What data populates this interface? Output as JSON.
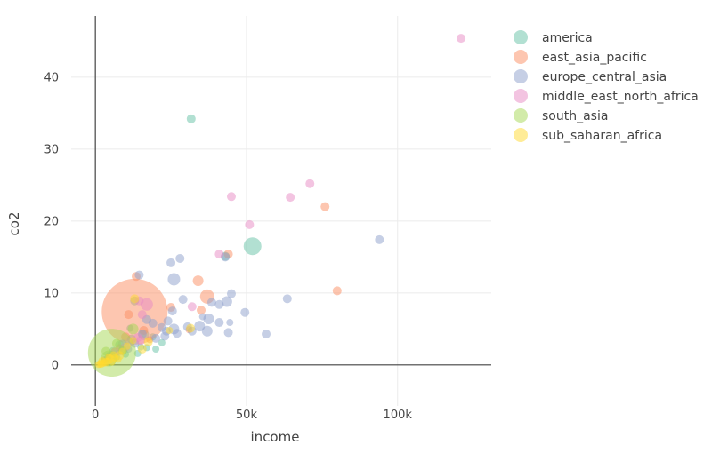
{
  "chart_data": {
    "type": "scatter",
    "title": "",
    "xlabel": "income",
    "ylabel": "co2",
    "xlim": [
      -8000,
      131000
    ],
    "ylim": [
      -5.7,
      48.5
    ],
    "x_ticks": [
      0,
      50000,
      100000
    ],
    "x_tick_labels": [
      "0",
      "50k",
      "100k"
    ],
    "y_ticks": [
      0,
      10,
      20,
      30,
      40
    ],
    "y_tick_labels": [
      "0",
      "10",
      "20",
      "30",
      "40"
    ],
    "grid": true,
    "legend_position": "top-right",
    "series": [
      {
        "name": "america",
        "color": "#66c2a5",
        "points": [
          {
            "x": 31700,
            "y": 34.2,
            "s": 5
          },
          {
            "x": 52000,
            "y": 16.5,
            "s": 10
          },
          {
            "x": 43000,
            "y": 15.1,
            "s": 5
          },
          {
            "x": 13000,
            "y": 8.9,
            "s": 5
          },
          {
            "x": 16000,
            "y": 4.2,
            "s": 6
          },
          {
            "x": 12000,
            "y": 3.6,
            "s": 5
          },
          {
            "x": 8000,
            "y": 2.8,
            "s": 5
          },
          {
            "x": 20000,
            "y": 2.2,
            "s": 4
          },
          {
            "x": 17000,
            "y": 2.4,
            "s": 4
          },
          {
            "x": 6000,
            "y": 1.9,
            "s": 5
          },
          {
            "x": 10000,
            "y": 1.5,
            "s": 4
          },
          {
            "x": 14000,
            "y": 1.6,
            "s": 4
          },
          {
            "x": 4000,
            "y": 0.9,
            "s": 4
          },
          {
            "x": 22000,
            "y": 3.1,
            "s": 4
          },
          {
            "x": 9000,
            "y": 2.0,
            "s": 5
          },
          {
            "x": 11500,
            "y": 5.1,
            "s": 4
          },
          {
            "x": 19000,
            "y": 3.9,
            "s": 4
          },
          {
            "x": 7000,
            "y": 1.1,
            "s": 4
          },
          {
            "x": 15000,
            "y": 2.5,
            "s": 4
          }
        ]
      },
      {
        "name": "east_asia_pacific",
        "color": "#fc8d62",
        "points": [
          {
            "x": 13000,
            "y": 7.4,
            "s": 37
          },
          {
            "x": 37000,
            "y": 9.5,
            "s": 8
          },
          {
            "x": 80000,
            "y": 10.3,
            "s": 5
          },
          {
            "x": 76000,
            "y": 22.0,
            "s": 5
          },
          {
            "x": 44000,
            "y": 15.4,
            "s": 5
          },
          {
            "x": 34000,
            "y": 11.7,
            "s": 6
          },
          {
            "x": 35000,
            "y": 7.6,
            "s": 5
          },
          {
            "x": 25000,
            "y": 8.0,
            "s": 5
          },
          {
            "x": 13500,
            "y": 12.3,
            "s": 5
          },
          {
            "x": 11000,
            "y": 7.0,
            "s": 5
          },
          {
            "x": 10000,
            "y": 3.9,
            "s": 5
          },
          {
            "x": 16000,
            "y": 4.8,
            "s": 5
          },
          {
            "x": 6500,
            "y": 1.8,
            "s": 5
          },
          {
            "x": 4500,
            "y": 1.3,
            "s": 4
          },
          {
            "x": 3000,
            "y": 0.7,
            "s": 4
          },
          {
            "x": 8000,
            "y": 2.4,
            "s": 4
          },
          {
            "x": 18000,
            "y": 3.5,
            "s": 4
          },
          {
            "x": 31000,
            "y": 4.9,
            "s": 4
          }
        ]
      },
      {
        "name": "europe_central_asia",
        "color": "#8da0cb",
        "points": [
          {
            "x": 94000,
            "y": 17.4,
            "s": 5
          },
          {
            "x": 25000,
            "y": 14.2,
            "s": 5
          },
          {
            "x": 28000,
            "y": 14.8,
            "s": 5
          },
          {
            "x": 26000,
            "y": 11.9,
            "s": 7
          },
          {
            "x": 43000,
            "y": 15.0,
            "s": 5
          },
          {
            "x": 14500,
            "y": 12.5,
            "s": 5
          },
          {
            "x": 45000,
            "y": 9.9,
            "s": 5
          },
          {
            "x": 43500,
            "y": 8.8,
            "s": 6
          },
          {
            "x": 41000,
            "y": 8.4,
            "s": 5
          },
          {
            "x": 38500,
            "y": 8.7,
            "s": 5
          },
          {
            "x": 63500,
            "y": 9.2,
            "s": 5
          },
          {
            "x": 49500,
            "y": 7.3,
            "s": 5
          },
          {
            "x": 37500,
            "y": 6.4,
            "s": 6
          },
          {
            "x": 29000,
            "y": 9.1,
            "s": 5
          },
          {
            "x": 25500,
            "y": 7.5,
            "s": 5
          },
          {
            "x": 41000,
            "y": 5.9,
            "s": 5
          },
          {
            "x": 44500,
            "y": 5.9,
            "s": 4
          },
          {
            "x": 34500,
            "y": 5.4,
            "s": 6
          },
          {
            "x": 30500,
            "y": 5.3,
            "s": 5
          },
          {
            "x": 26000,
            "y": 5.0,
            "s": 6
          },
          {
            "x": 23500,
            "y": 4.7,
            "s": 5
          },
          {
            "x": 32000,
            "y": 4.7,
            "s": 5
          },
          {
            "x": 37000,
            "y": 4.7,
            "s": 6
          },
          {
            "x": 44000,
            "y": 4.5,
            "s": 5
          },
          {
            "x": 56500,
            "y": 4.3,
            "s": 5
          },
          {
            "x": 23000,
            "y": 4.0,
            "s": 5
          },
          {
            "x": 20000,
            "y": 3.7,
            "s": 5
          },
          {
            "x": 27000,
            "y": 4.4,
            "s": 5
          },
          {
            "x": 19000,
            "y": 5.8,
            "s": 5
          },
          {
            "x": 17000,
            "y": 6.3,
            "s": 5
          },
          {
            "x": 22000,
            "y": 5.2,
            "s": 5
          },
          {
            "x": 15500,
            "y": 4.3,
            "s": 5
          },
          {
            "x": 13000,
            "y": 3.0,
            "s": 5
          },
          {
            "x": 11000,
            "y": 2.2,
            "s": 4
          },
          {
            "x": 9000,
            "y": 2.9,
            "s": 5
          },
          {
            "x": 24000,
            "y": 6.1,
            "s": 5
          },
          {
            "x": 35500,
            "y": 6.7,
            "s": 4
          }
        ]
      },
      {
        "name": "middle_east_north_africa",
        "color": "#e78ac3",
        "points": [
          {
            "x": 121000,
            "y": 45.4,
            "s": 5
          },
          {
            "x": 71000,
            "y": 25.2,
            "s": 5
          },
          {
            "x": 64500,
            "y": 23.3,
            "s": 5
          },
          {
            "x": 45000,
            "y": 23.4,
            "s": 5
          },
          {
            "x": 51000,
            "y": 19.5,
            "s": 5
          },
          {
            "x": 41000,
            "y": 15.4,
            "s": 5
          },
          {
            "x": 32000,
            "y": 8.1,
            "s": 5
          },
          {
            "x": 17000,
            "y": 8.4,
            "s": 7
          },
          {
            "x": 14500,
            "y": 8.9,
            "s": 5
          },
          {
            "x": 15500,
            "y": 7.0,
            "s": 5
          },
          {
            "x": 14000,
            "y": 3.8,
            "s": 5
          },
          {
            "x": 11500,
            "y": 3.2,
            "s": 5
          },
          {
            "x": 10000,
            "y": 2.5,
            "s": 5
          },
          {
            "x": 8000,
            "y": 1.8,
            "s": 4
          },
          {
            "x": 15000,
            "y": 3.4,
            "s": 5
          }
        ]
      },
      {
        "name": "south_asia",
        "color": "#a6d854",
        "points": [
          {
            "x": 5500,
            "y": 1.7,
            "s": 27
          },
          {
            "x": 12500,
            "y": 5.0,
            "s": 6
          },
          {
            "x": 7000,
            "y": 3.0,
            "s": 5
          },
          {
            "x": 4500,
            "y": 0.9,
            "s": 9
          },
          {
            "x": 3500,
            "y": 1.9,
            "s": 5
          },
          {
            "x": 9000,
            "y": 2.0,
            "s": 5
          }
        ]
      },
      {
        "name": "sub_saharan_africa",
        "color": "#ffd92f",
        "points": [
          {
            "x": 13000,
            "y": 9.2,
            "s": 5
          },
          {
            "x": 17500,
            "y": 3.2,
            "s": 5
          },
          {
            "x": 15500,
            "y": 2.2,
            "s": 5
          },
          {
            "x": 31500,
            "y": 5.1,
            "s": 5
          },
          {
            "x": 24500,
            "y": 4.8,
            "s": 4
          },
          {
            "x": 12500,
            "y": 3.4,
            "s": 4
          },
          {
            "x": 8000,
            "y": 1.3,
            "s": 5
          },
          {
            "x": 6500,
            "y": 1.0,
            "s": 4
          },
          {
            "x": 5000,
            "y": 0.8,
            "s": 5
          },
          {
            "x": 4000,
            "y": 0.5,
            "s": 4
          },
          {
            "x": 3500,
            "y": 0.4,
            "s": 5
          },
          {
            "x": 3000,
            "y": 0.3,
            "s": 4
          },
          {
            "x": 2500,
            "y": 0.2,
            "s": 4
          },
          {
            "x": 2000,
            "y": 0.1,
            "s": 4
          },
          {
            "x": 1500,
            "y": 0.1,
            "s": 4
          },
          {
            "x": 1000,
            "y": 0.05,
            "s": 4
          },
          {
            "x": 2200,
            "y": 0.6,
            "s": 4
          },
          {
            "x": 1800,
            "y": 0.3,
            "s": 4
          },
          {
            "x": 6000,
            "y": 1.4,
            "s": 4
          },
          {
            "x": 9000,
            "y": 1.9,
            "s": 4
          },
          {
            "x": 10500,
            "y": 2.6,
            "s": 4
          },
          {
            "x": 4500,
            "y": 1.1,
            "s": 4
          },
          {
            "x": 7500,
            "y": 0.8,
            "s": 4
          },
          {
            "x": 5500,
            "y": 0.4,
            "s": 4
          }
        ]
      }
    ]
  }
}
